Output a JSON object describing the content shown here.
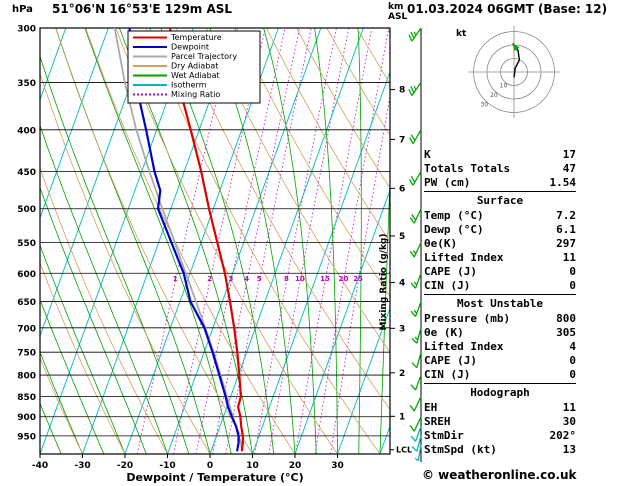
{
  "header": {
    "pressure_unit": "hPa",
    "station_title": "51°06'N 16°53'E 129m ASL",
    "altitude_unit_line1": "km",
    "altitude_unit_line2": "ASL",
    "datetime_title": "01.03.2024 06GMT (Base: 12)"
  },
  "footer": {
    "copyright": "© weatheronline.co.uk"
  },
  "colors": {
    "temperature": "#dd0000",
    "dewpoint": "#0000cc",
    "parcel": "#a9a9a9",
    "dry_adiabat": "#cfa05f",
    "wet_adiabat": "#00a000",
    "isotherm": "#00b8b8",
    "mixing_ratio": "#c000c0",
    "gridline": "#000000",
    "barb_green": "#00a800",
    "barb_cyan": "#00b8b8"
  },
  "legend": [
    {
      "label": "Temperature",
      "color_key": "temperature",
      "dashed": false
    },
    {
      "label": "Dewpoint",
      "color_key": "dewpoint",
      "dashed": false
    },
    {
      "label": "Parcel Trajectory",
      "color_key": "parcel",
      "dashed": false
    },
    {
      "label": "Dry Adiabat",
      "color_key": "dry_adiabat",
      "dashed": false
    },
    {
      "label": "Wet Adiabat",
      "color_key": "wet_adiabat",
      "dashed": false
    },
    {
      "label": "Isotherm",
      "color_key": "isotherm",
      "dashed": false
    },
    {
      "label": "Mixing Ratio",
      "color_key": "mixing_ratio",
      "dashed": true
    }
  ],
  "axes": {
    "pressure_ticks": [
      300,
      350,
      400,
      450,
      500,
      550,
      600,
      650,
      700,
      750,
      800,
      850,
      900,
      950
    ],
    "temp_ticks": [
      -40,
      -30,
      -20,
      -10,
      0,
      10,
      20,
      30
    ],
    "xlabel": "Dewpoint / Temperature (°C)",
    "mixing_axis_label": "Mixing Ratio (g/kg)",
    "mixing_ratio_values": [
      1,
      2,
      3,
      4,
      5,
      8,
      10,
      15,
      20,
      25
    ],
    "height_ticks": [
      [
        1,
        899
      ],
      [
        2,
        795
      ],
      [
        3,
        701
      ],
      [
        4,
        616
      ],
      [
        5,
        540
      ],
      [
        6,
        472
      ],
      [
        7,
        411
      ],
      [
        8,
        357
      ]
    ],
    "lcl_label": "LCL"
  },
  "chart_data": {
    "type": "skewt_log_p_sounding",
    "pressure_range_hpa": [
      300,
      1000
    ],
    "temperature_profile": [
      [
        990,
        7.2
      ],
      [
        970,
        6.8
      ],
      [
        950,
        6.2
      ],
      [
        925,
        5.0
      ],
      [
        900,
        4.0
      ],
      [
        875,
        2.6
      ],
      [
        850,
        2.4
      ],
      [
        800,
        0.2
      ],
      [
        750,
        -2.2
      ],
      [
        700,
        -5.0
      ],
      [
        650,
        -8.2
      ],
      [
        600,
        -11.8
      ],
      [
        550,
        -16.2
      ],
      [
        500,
        -21.0
      ],
      [
        450,
        -26.0
      ],
      [
        400,
        -32.0
      ],
      [
        350,
        -39.0
      ],
      [
        300,
        -45.5
      ]
    ],
    "dewpoint_profile": [
      [
        990,
        6.1
      ],
      [
        970,
        5.8
      ],
      [
        950,
        5.2
      ],
      [
        925,
        3.8
      ],
      [
        900,
        2.0
      ],
      [
        875,
        0.2
      ],
      [
        850,
        -1.2
      ],
      [
        800,
        -4.5
      ],
      [
        750,
        -8.0
      ],
      [
        700,
        -12.0
      ],
      [
        650,
        -17.5
      ],
      [
        600,
        -21.5
      ],
      [
        550,
        -27.0
      ],
      [
        500,
        -33.0
      ],
      [
        475,
        -34.0
      ],
      [
        450,
        -37.0
      ],
      [
        400,
        -42.5
      ],
      [
        350,
        -49.0
      ],
      [
        300,
        -55.0
      ]
    ],
    "parcel_profile": [
      [
        990,
        7.2
      ],
      [
        970,
        6.4
      ],
      [
        950,
        5.2
      ],
      [
        900,
        2.2
      ],
      [
        850,
        -0.9
      ],
      [
        800,
        -4.2
      ],
      [
        750,
        -7.8
      ],
      [
        700,
        -11.8
      ],
      [
        650,
        -16.2
      ],
      [
        600,
        -21.0
      ],
      [
        550,
        -26.2
      ],
      [
        500,
        -32.0
      ],
      [
        450,
        -38.2
      ],
      [
        400,
        -44.8
      ],
      [
        350,
        -51.5
      ],
      [
        300,
        -58.5
      ]
    ],
    "wind_barbs": [
      {
        "p": 300,
        "dir": 215,
        "spd": 25,
        "color": "green"
      },
      {
        "p": 350,
        "dir": 215,
        "spd": 25,
        "color": "green"
      },
      {
        "p": 400,
        "dir": 210,
        "spd": 20,
        "color": "green"
      },
      {
        "p": 450,
        "dir": 210,
        "spd": 20,
        "color": "green"
      },
      {
        "p": 500,
        "dir": 205,
        "spd": 20,
        "color": "green"
      },
      {
        "p": 550,
        "dir": 205,
        "spd": 15,
        "color": "green"
      },
      {
        "p": 600,
        "dir": 200,
        "spd": 15,
        "color": "green"
      },
      {
        "p": 650,
        "dir": 200,
        "spd": 15,
        "color": "green"
      },
      {
        "p": 700,
        "dir": 195,
        "spd": 15,
        "color": "green"
      },
      {
        "p": 750,
        "dir": 195,
        "spd": 10,
        "color": "green"
      },
      {
        "p": 800,
        "dir": 200,
        "spd": 10,
        "color": "green"
      },
      {
        "p": 850,
        "dir": 205,
        "spd": 10,
        "color": "green"
      },
      {
        "p": 900,
        "dir": 205,
        "spd": 10,
        "color": "green"
      },
      {
        "p": 925,
        "dir": 200,
        "spd": 10,
        "color": "cyan"
      },
      {
        "p": 950,
        "dir": 195,
        "spd": 10,
        "color": "cyan"
      },
      {
        "p": 975,
        "dir": 190,
        "spd": 5,
        "color": "cyan"
      }
    ]
  },
  "hodograph": {
    "unit_label": "kt",
    "rings_kt": [
      10,
      20,
      30
    ],
    "trace_uv_kt": [
      [
        0,
        -4
      ],
      [
        1,
        3
      ],
      [
        4,
        9
      ],
      [
        3,
        16
      ],
      [
        -1,
        21
      ]
    ]
  },
  "stats": {
    "top": [
      {
        "label": "K",
        "value": "17"
      },
      {
        "label": "Totals Totals",
        "value": "47"
      },
      {
        "label": "PW (cm)",
        "value": "1.54"
      }
    ],
    "sections": [
      {
        "title": "Surface",
        "rows": [
          [
            "Temp (°C)",
            "7.2"
          ],
          [
            "Dewp (°C)",
            "6.1"
          ],
          [
            "θe(K)",
            "297"
          ],
          [
            "Lifted Index",
            "11"
          ],
          [
            "CAPE (J)",
            "0"
          ],
          [
            "CIN (J)",
            "0"
          ]
        ]
      },
      {
        "title": "Most Unstable",
        "rows": [
          [
            "Pressure (mb)",
            "800"
          ],
          [
            "θe (K)",
            "305"
          ],
          [
            "Lifted Index",
            "4"
          ],
          [
            "CAPE (J)",
            "0"
          ],
          [
            "CIN (J)",
            "0"
          ]
        ]
      },
      {
        "title": "Hodograph",
        "rows": [
          [
            "EH",
            "11"
          ],
          [
            "SREH",
            "30"
          ],
          [
            "StmDir",
            "202°"
          ],
          [
            "StmSpd (kt)",
            "13"
          ]
        ]
      }
    ]
  }
}
